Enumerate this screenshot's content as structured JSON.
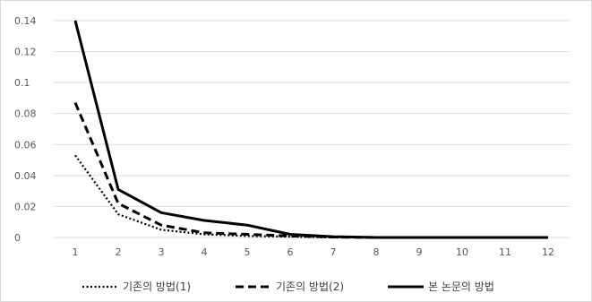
{
  "chart_data": {
    "type": "line",
    "categories": [
      "1",
      "2",
      "3",
      "4",
      "5",
      "6",
      "7",
      "8",
      "9",
      "10",
      "11",
      "12"
    ],
    "y_ticks": [
      "0",
      "0.02",
      "0.04",
      "0.06",
      "0.08",
      "0.1",
      "0.12",
      "0.14"
    ],
    "ylim": [
      0,
      0.14
    ],
    "grid": true,
    "legend_position": "bottom",
    "title": "",
    "xlabel": "",
    "ylabel": "",
    "series": [
      {
        "name": "기존의 방법(1)",
        "style": "dotted",
        "color": "#000000",
        "values": [
          0.053,
          0.015,
          0.005,
          0.002,
          0.001,
          0.0005,
          0,
          0,
          0,
          0,
          0,
          0
        ]
      },
      {
        "name": "기존의 방법(2)",
        "style": "dashed",
        "color": "#000000",
        "values": [
          0.087,
          0.022,
          0.008,
          0.003,
          0.002,
          0.001,
          0.0003,
          0,
          0,
          0,
          0,
          0
        ]
      },
      {
        "name": "본 논문의 방법",
        "style": "solid",
        "color": "#000000",
        "values": [
          0.14,
          0.031,
          0.016,
          0.011,
          0.008,
          0.002,
          0.0005,
          0,
          0,
          0,
          0,
          0
        ]
      }
    ]
  }
}
